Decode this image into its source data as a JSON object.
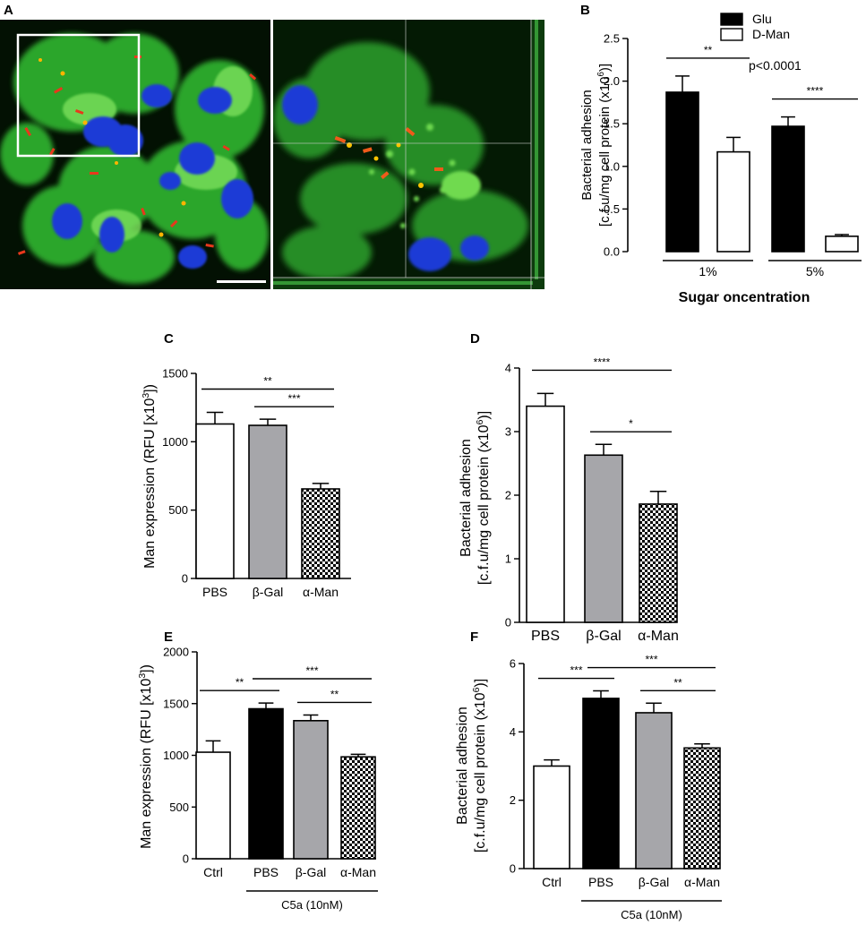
{
  "panel_letters": {
    "A": "A",
    "B": "B",
    "C": "C",
    "D": "D",
    "E": "E",
    "F": "F"
  },
  "chart_data": [
    {
      "panel": "B",
      "type": "bar",
      "categories": [
        "1%",
        "5%"
      ],
      "group_axis_label": "Sugar oncentration",
      "series": [
        {
          "name": "Glu",
          "values": [
            1.87,
            1.47
          ],
          "errors": [
            0.19,
            0.11
          ],
          "fill": "#000000"
        },
        {
          "name": "D-Man",
          "values": [
            1.17,
            0.18
          ],
          "errors": [
            0.17,
            0.02
          ],
          "fill": "#ffffff"
        }
      ],
      "ylabel": [
        "Bacterial adhesion",
        "[c.f.u/mg cell protein (x10",
        "6",
        ")]"
      ],
      "ylim": [
        0,
        2.5
      ],
      "yticks": [
        0.0,
        0.5,
        1.0,
        1.5,
        2.0,
        2.5
      ],
      "ytick_labels": [
        "0.0",
        "0.5",
        "1.0",
        "1.5",
        "2.0",
        "2.5"
      ],
      "annotation": "p<0.0001",
      "legend_position": "top-right",
      "significance": [
        {
          "from": [
            0,
            0
          ],
          "to": [
            0,
            1
          ],
          "label": "**"
        },
        {
          "from": [
            1,
            0
          ],
          "to": [
            1,
            1
          ],
          "label": "****"
        }
      ]
    },
    {
      "panel": "C",
      "type": "bar",
      "categories": [
        "PBS",
        "β-Gal",
        "α-Man"
      ],
      "values": [
        1130,
        1120,
        655
      ],
      "errors": [
        85,
        45,
        40
      ],
      "fills": [
        "#ffffff",
        "#a6a6aa",
        "checker"
      ],
      "ylabel": [
        "Man expression (RFU [x10",
        "3",
        "])"
      ],
      "ylim": [
        0,
        1500
      ],
      "yticks": [
        0,
        500,
        1000,
        1500
      ],
      "ytick_labels": [
        "0",
        "500",
        "1000",
        "1500"
      ],
      "significance": [
        {
          "from": 0,
          "to": 2,
          "label": "**"
        },
        {
          "from": 1,
          "to": 2,
          "label": "***"
        }
      ]
    },
    {
      "panel": "D",
      "type": "bar",
      "categories": [
        "PBS",
        "β-Gal",
        "α-Man"
      ],
      "values": [
        3.4,
        2.63,
        1.86
      ],
      "errors": [
        0.2,
        0.17,
        0.2
      ],
      "fills": [
        "#ffffff",
        "#a6a6aa",
        "checker"
      ],
      "ylabel": [
        "Bacterial adhesion",
        "[c.f.u/mg cell protein  (x10",
        "6",
        ")]"
      ],
      "ylim": [
        0,
        4
      ],
      "yticks": [
        0,
        1,
        2,
        3,
        4
      ],
      "ytick_labels": [
        "0",
        "1",
        "2",
        "3",
        "4"
      ],
      "significance": [
        {
          "from": 0,
          "to": 2,
          "label": "****"
        },
        {
          "from": 1,
          "to": 2,
          "label": "*"
        }
      ]
    },
    {
      "panel": "E",
      "type": "bar",
      "categories": [
        "Ctrl",
        "PBS",
        "β-Gal",
        "α-Man"
      ],
      "values": [
        1030,
        1450,
        1335,
        985
      ],
      "errors": [
        110,
        55,
        55,
        25
      ],
      "fills": [
        "#ffffff",
        "#000000",
        "#a6a6aa",
        "checker"
      ],
      "ylabel": [
        "Man expression (RFU [x10",
        "3",
        "])"
      ],
      "ylim": [
        0,
        2000
      ],
      "yticks": [
        0,
        500,
        1000,
        1500,
        2000
      ],
      "ytick_labels": [
        "0",
        "500",
        "1000",
        "1500",
        "2000"
      ],
      "group_label": "C5a (10nM)",
      "group_span": [
        1,
        3
      ],
      "significance": [
        {
          "from": 0,
          "to": 1,
          "label": "**"
        },
        {
          "from": 1,
          "to": 3,
          "label": "***"
        },
        {
          "from": 2,
          "to": 3,
          "label": "**"
        }
      ]
    },
    {
      "panel": "F",
      "type": "bar",
      "categories": [
        "Ctrl",
        "PBS",
        "β-Gal",
        "α-Man"
      ],
      "values": [
        3.0,
        4.98,
        4.56,
        3.53
      ],
      "errors": [
        0.18,
        0.22,
        0.28,
        0.12
      ],
      "fills": [
        "#ffffff",
        "#000000",
        "#a6a6aa",
        "checker"
      ],
      "ylabel": [
        "Bacterial adhesion",
        "[c.f.u/mg cell protein  (x10",
        "6",
        ")]"
      ],
      "ylim": [
        0,
        6
      ],
      "yticks": [
        0,
        2,
        4,
        6
      ],
      "ytick_labels": [
        "0",
        "2",
        "4",
        "6"
      ],
      "group_label": "C5a (10nM)",
      "group_span": [
        1,
        3
      ],
      "significance": [
        {
          "from": 0,
          "to": 1,
          "label": "***"
        },
        {
          "from": 1,
          "to": 3,
          "label": "***"
        },
        {
          "from": 2,
          "to": 3,
          "label": "**"
        }
      ]
    }
  ]
}
